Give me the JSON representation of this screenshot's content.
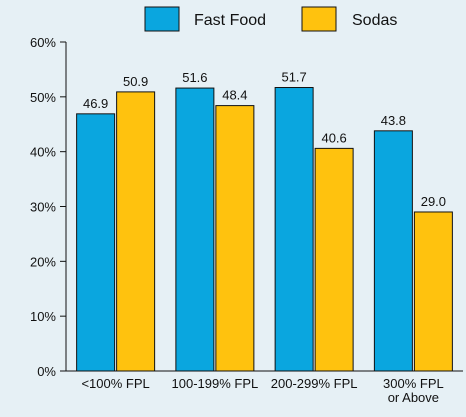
{
  "colors": {
    "background": "#e6f0f5",
    "fast_food": "#0aa6df",
    "sodas": "#ffc20e",
    "outline": "#111111"
  },
  "chart_data": {
    "type": "bar",
    "title": "",
    "xlabel": "",
    "ylabel": "",
    "categories": [
      [
        "<100% FPL"
      ],
      [
        "100-199% FPL"
      ],
      [
        "200-299% FPL"
      ],
      [
        "300% FPL",
        "or Above"
      ]
    ],
    "series": [
      {
        "name": "Fast Food",
        "color": "#0aa6df",
        "values": [
          46.9,
          51.6,
          51.7,
          43.8
        ],
        "labels": [
          "46.9",
          "51.6",
          "51.7",
          "43.8"
        ]
      },
      {
        "name": "Sodas",
        "color": "#ffc20e",
        "values": [
          50.9,
          48.4,
          40.6,
          29.0
        ],
        "labels": [
          "50.9",
          "48.4",
          "40.6",
          "29.0"
        ]
      }
    ],
    "ylim": [
      0,
      60
    ],
    "yticks": [
      0,
      10,
      20,
      30,
      40,
      50,
      60
    ],
    "ytick_labels": [
      "0%",
      "10%",
      "20%",
      "30%",
      "40%",
      "50%",
      "60%"
    ],
    "grid": false,
    "legend_position": "top"
  }
}
